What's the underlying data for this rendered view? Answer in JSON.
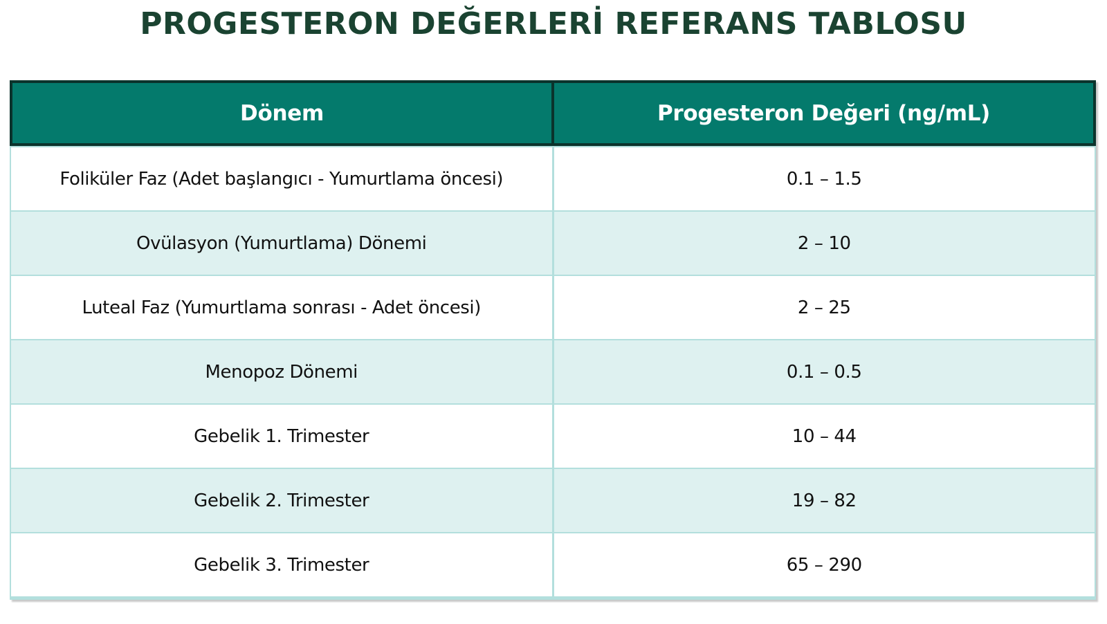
{
  "page_title": "PROGESTERON DEĞERLERİ REFERANS TABLOSU",
  "colors": {
    "title_text": "#1a4331",
    "header_bg": "#047a6c",
    "header_text": "#ffffff",
    "header_border": "#0b332c",
    "row_bg": "#ffffff",
    "row_alt_bg": "#def1f0",
    "grid_border": "#b3dfdd",
    "body_text": "#111111"
  },
  "chart_data": {
    "type": "table",
    "title": "PROGESTERON DEĞERLERİ REFERANS TABLOSU",
    "columns": [
      "Dönem",
      "Progesteron Değeri (ng/mL)"
    ],
    "rows": [
      [
        "Foliküler Faz (Adet başlangıcı - Yumurtlama öncesi)",
        "0.1 – 1.5"
      ],
      [
        "Ovülasyon (Yumurtlama) Dönemi",
        "2 – 10"
      ],
      [
        "Luteal Faz (Yumurtlama sonrası - Adet öncesi)",
        "2 – 25"
      ],
      [
        "Menopoz Dönemi",
        "0.1 – 0.5"
      ],
      [
        "Gebelik 1. Trimester",
        "10 – 44"
      ],
      [
        "Gebelik 2. Trimester",
        "19 – 82"
      ],
      [
        "Gebelik 3. Trimester",
        "65 – 290"
      ]
    ],
    "layout": {
      "header_position": "top",
      "column_split": "50/50",
      "row_striping": "white / light-teal alternating",
      "alignment": "center"
    }
  }
}
